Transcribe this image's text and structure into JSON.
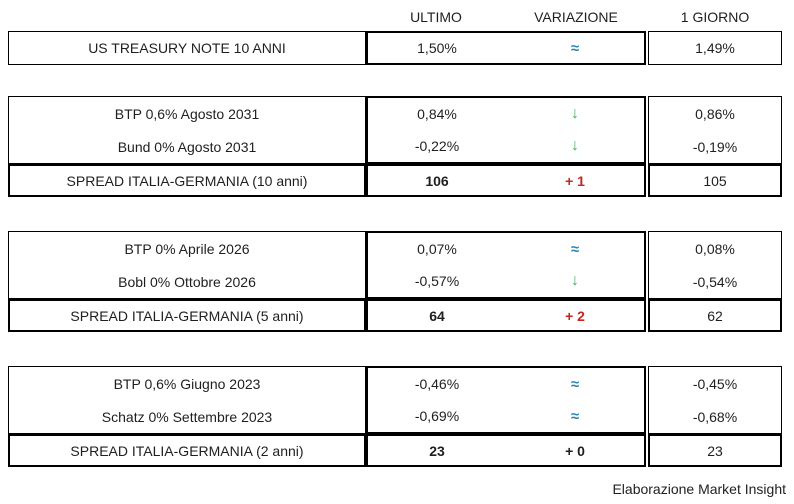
{
  "header": {
    "ultimo": "ULTIMO",
    "variazione": "VARIAZIONE",
    "giorno": "1 GIORNO"
  },
  "colors": {
    "flat_blue": "#2e86b5",
    "down_green": "#3fae5c",
    "up_red": "#c3271f",
    "border": "#000000",
    "text": "#1f1f1f"
  },
  "blocks": [
    {
      "rows": [
        {
          "label": "US TREASURY NOTE 10 ANNI",
          "ultimo": "1,50%",
          "variazione": "≈",
          "var_type": "flat",
          "giorno": "1,49%"
        }
      ]
    },
    {
      "rows": [
        {
          "label": "BTP 0,6% Agosto 2031",
          "ultimo": "0,84%",
          "variazione": "↓",
          "var_type": "down",
          "giorno": "0,86%"
        },
        {
          "label": "Bund 0% Agosto 2031",
          "ultimo": "-0,22%",
          "variazione": "↓",
          "var_type": "down",
          "giorno": "-0,19%"
        }
      ],
      "spread": {
        "label": "SPREAD ITALIA-GERMANIA (10 anni)",
        "ultimo": "106",
        "variazione": "+ 1",
        "var_type": "up",
        "giorno": "105"
      }
    },
    {
      "rows": [
        {
          "label": "BTP 0% Aprile 2026",
          "ultimo": "0,07%",
          "variazione": "≈",
          "var_type": "flat",
          "giorno": "0,08%"
        },
        {
          "label": "Bobl 0% Ottobre 2026",
          "ultimo": "-0,57%",
          "variazione": "↓",
          "var_type": "down",
          "giorno": "-0,54%"
        }
      ],
      "spread": {
        "label": "SPREAD ITALIA-GERMANIA (5 anni)",
        "ultimo": "64",
        "variazione": "+ 2",
        "var_type": "up",
        "giorno": "62"
      }
    },
    {
      "rows": [
        {
          "label": "BTP 0,6% Giugno 2023",
          "ultimo": "-0,46%",
          "variazione": "≈",
          "var_type": "flat",
          "giorno": "-0,45%"
        },
        {
          "label": "Schatz 0% Settembre 2023",
          "ultimo": "-0,69%",
          "variazione": "≈",
          "var_type": "flat",
          "giorno": "-0,68%"
        }
      ],
      "spread": {
        "label": "SPREAD ITALIA-GERMANIA (2 anni)",
        "ultimo": "23",
        "variazione": "+ 0",
        "var_type": "zero",
        "giorno": "23"
      }
    }
  ],
  "footer": {
    "credit": "Elaborazione Market Insight"
  }
}
